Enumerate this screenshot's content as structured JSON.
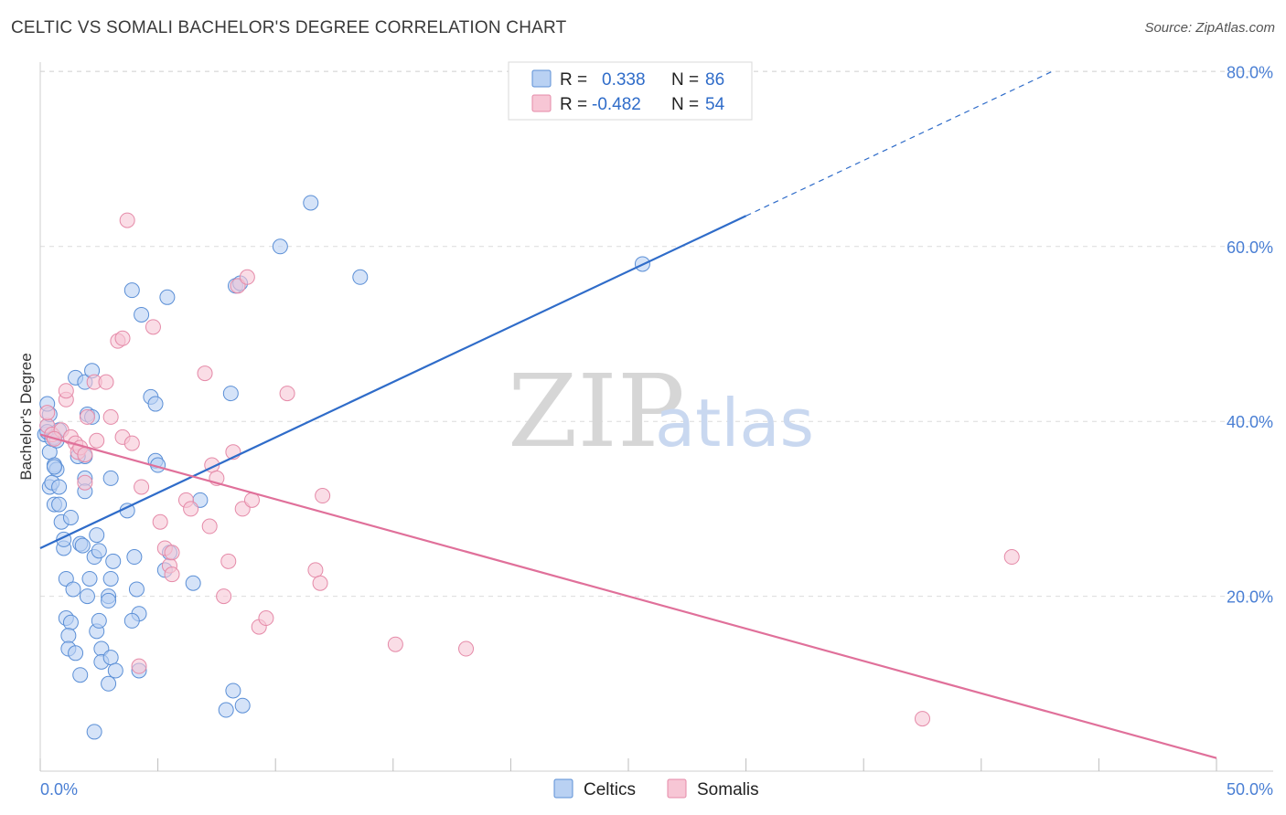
{
  "header": {
    "title": "CELTIC VS SOMALI BACHELOR'S DEGREE CORRELATION CHART",
    "source": "Source: ZipAtlas.com"
  },
  "watermark": {
    "zip": "ZIP",
    "atlas": "atlas"
  },
  "legend": {
    "items": [
      {
        "r_label": "R =",
        "r_value": "0.338",
        "n_label": "N =",
        "n_value": "86"
      },
      {
        "r_label": "R =",
        "r_value": "-0.482",
        "n_label": "N =",
        "n_value": "54"
      }
    ]
  },
  "bottom_legend": {
    "celtics": "Celtics",
    "somalis": "Somalis"
  },
  "colors": {
    "celtics_fill": "#b9d1f3",
    "celtics_stroke": "#5b8fd6",
    "celtics_line": "#2f6cc9",
    "somalis_fill": "#f7c6d5",
    "somalis_stroke": "#e58aa8",
    "somalis_line": "#e0709a",
    "grid": "#dcdcdc",
    "axis_text": "#4a7fd4"
  },
  "chart_data": {
    "type": "scatter",
    "title": "CELTIC VS SOMALI BACHELOR'S DEGREE CORRELATION CHART",
    "xlabel": "",
    "ylabel": "Bachelor's Degree",
    "xlim": [
      0,
      50
    ],
    "ylim": [
      0,
      81
    ],
    "x_tick_labels": [
      "0.0%",
      "50.0%"
    ],
    "y_ticks": [
      20,
      40,
      60,
      80
    ],
    "y_tick_labels": [
      "20.0%",
      "40.0%",
      "60.0%",
      "80.0%"
    ],
    "legend_position": "bottom-center",
    "series": [
      {
        "name": "Celtics",
        "r": 0.338,
        "n": 86,
        "trend": {
          "x0": 0,
          "y0": 25.5,
          "x1": 30,
          "y1": 63.5,
          "dashed_to_x": 43,
          "dashed_to_y": 80
        },
        "points": [
          [
            0.2,
            38.5
          ],
          [
            0.3,
            39.5
          ],
          [
            0.4,
            36.5
          ],
          [
            0.3,
            38.8
          ],
          [
            0.4,
            40.8
          ],
          [
            0.3,
            42.0
          ],
          [
            0.5,
            38.0
          ],
          [
            0.6,
            38.2
          ],
          [
            0.8,
            39.0
          ],
          [
            0.7,
            37.8
          ],
          [
            0.6,
            35.0
          ],
          [
            0.7,
            34.5
          ],
          [
            0.4,
            32.5
          ],
          [
            0.5,
            33.0
          ],
          [
            0.8,
            32.5
          ],
          [
            0.6,
            30.5
          ],
          [
            0.8,
            30.5
          ],
          [
            0.9,
            28.5
          ],
          [
            1.0,
            25.5
          ],
          [
            1.3,
            29.0
          ],
          [
            1.1,
            22.0
          ],
          [
            1.4,
            20.8
          ],
          [
            1.1,
            17.5
          ],
          [
            1.3,
            17.0
          ],
          [
            1.2,
            15.5
          ],
          [
            1.2,
            14.0
          ],
          [
            1.5,
            13.5
          ],
          [
            1.7,
            11.0
          ],
          [
            1.5,
            45.0
          ],
          [
            1.9,
            44.5
          ],
          [
            2.2,
            45.8
          ],
          [
            2.0,
            40.8
          ],
          [
            1.9,
            36.0
          ],
          [
            1.6,
            36.0
          ],
          [
            1.9,
            33.5
          ],
          [
            1.9,
            32.0
          ],
          [
            1.7,
            26.0
          ],
          [
            1.8,
            25.8
          ],
          [
            2.0,
            20.0
          ],
          [
            2.1,
            22.0
          ],
          [
            2.3,
            24.5
          ],
          [
            2.4,
            27.0
          ],
          [
            2.5,
            25.2
          ],
          [
            2.4,
            16.0
          ],
          [
            2.5,
            17.2
          ],
          [
            2.6,
            14.0
          ],
          [
            2.6,
            12.5
          ],
          [
            2.9,
            20.0
          ],
          [
            2.9,
            19.5
          ],
          [
            3.1,
            24.0
          ],
          [
            3.0,
            22.0
          ],
          [
            3.0,
            13.0
          ],
          [
            2.9,
            10.0
          ],
          [
            3.2,
            11.5
          ],
          [
            2.3,
            4.5
          ],
          [
            3.0,
            33.5
          ],
          [
            3.7,
            29.8
          ],
          [
            3.9,
            55.0
          ],
          [
            4.3,
            52.2
          ],
          [
            4.0,
            24.5
          ],
          [
            4.1,
            20.8
          ],
          [
            4.2,
            18.0
          ],
          [
            3.9,
            17.2
          ],
          [
            4.2,
            11.5
          ],
          [
            4.7,
            42.8
          ],
          [
            4.9,
            42.0
          ],
          [
            4.9,
            35.5
          ],
          [
            5.0,
            35.0
          ],
          [
            5.3,
            23.0
          ],
          [
            5.5,
            25.0
          ],
          [
            5.4,
            54.2
          ],
          [
            6.5,
            21.5
          ],
          [
            6.8,
            31.0
          ],
          [
            8.1,
            43.2
          ],
          [
            8.3,
            55.5
          ],
          [
            8.5,
            55.8
          ],
          [
            7.9,
            7.0
          ],
          [
            8.2,
            9.2
          ],
          [
            8.6,
            7.5
          ],
          [
            10.2,
            60.0
          ],
          [
            11.5,
            65.0
          ],
          [
            13.6,
            56.5
          ],
          [
            25.6,
            58.0
          ],
          [
            2.2,
            40.5
          ],
          [
            1.0,
            26.5
          ],
          [
            0.6,
            34.8
          ]
        ]
      },
      {
        "name": "Somalis",
        "r": -0.482,
        "n": 54,
        "trend": {
          "x0": 0,
          "y0": 38.5,
          "x1": 50,
          "y1": 1.5
        },
        "points": [
          [
            0.3,
            39.5
          ],
          [
            0.3,
            41.0
          ],
          [
            0.5,
            38.5
          ],
          [
            0.9,
            39.0
          ],
          [
            1.1,
            42.5
          ],
          [
            1.1,
            43.5
          ],
          [
            0.6,
            38.0
          ],
          [
            1.3,
            38.2
          ],
          [
            1.5,
            37.5
          ],
          [
            1.6,
            36.5
          ],
          [
            1.7,
            37.0
          ],
          [
            1.9,
            36.2
          ],
          [
            1.9,
            33.0
          ],
          [
            2.0,
            40.5
          ],
          [
            2.3,
            44.5
          ],
          [
            2.4,
            37.8
          ],
          [
            2.8,
            44.5
          ],
          [
            3.0,
            40.5
          ],
          [
            3.3,
            49.2
          ],
          [
            3.5,
            49.5
          ],
          [
            3.5,
            38.2
          ],
          [
            3.7,
            63.0
          ],
          [
            3.9,
            37.5
          ],
          [
            4.3,
            32.5
          ],
          [
            4.8,
            50.8
          ],
          [
            5.1,
            28.5
          ],
          [
            5.3,
            25.5
          ],
          [
            5.5,
            23.5
          ],
          [
            5.6,
            25.0
          ],
          [
            5.6,
            22.5
          ],
          [
            6.2,
            31.0
          ],
          [
            6.4,
            30.0
          ],
          [
            7.0,
            45.5
          ],
          [
            7.2,
            28.0
          ],
          [
            7.3,
            35.0
          ],
          [
            7.5,
            33.5
          ],
          [
            7.8,
            20.0
          ],
          [
            8.0,
            24.0
          ],
          [
            8.2,
            36.5
          ],
          [
            8.4,
            55.5
          ],
          [
            8.8,
            56.5
          ],
          [
            8.6,
            30.0
          ],
          [
            9.0,
            31.0
          ],
          [
            9.3,
            16.5
          ],
          [
            9.6,
            17.5
          ],
          [
            10.5,
            43.2
          ],
          [
            11.7,
            23.0
          ],
          [
            11.9,
            21.5
          ],
          [
            12.0,
            31.5
          ],
          [
            15.1,
            14.5
          ],
          [
            18.1,
            14.0
          ],
          [
            41.3,
            24.5
          ],
          [
            37.5,
            6.0
          ],
          [
            4.2,
            12.0
          ]
        ]
      }
    ]
  }
}
